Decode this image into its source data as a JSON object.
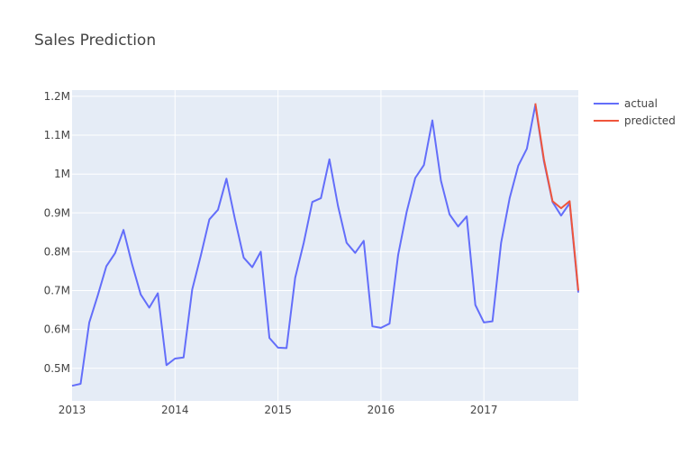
{
  "chart_data": {
    "type": "line",
    "title": "Sales Prediction",
    "xlabel": "",
    "ylabel": "",
    "xlim": [
      2013.0,
      2017.917
    ],
    "ylim": [
      416000,
      1216000
    ],
    "grid": true,
    "legend_position": "top-right",
    "x_ticks": [
      {
        "value": 2013,
        "label": "2013"
      },
      {
        "value": 2014,
        "label": "2014"
      },
      {
        "value": 2015,
        "label": "2015"
      },
      {
        "value": 2016,
        "label": "2016"
      },
      {
        "value": 2017,
        "label": "2017"
      }
    ],
    "y_ticks": [
      {
        "value": 500000,
        "label": "0.5M"
      },
      {
        "value": 600000,
        "label": "0.6M"
      },
      {
        "value": 700000,
        "label": "0.7M"
      },
      {
        "value": 800000,
        "label": "0.8M"
      },
      {
        "value": 900000,
        "label": "0.9M"
      },
      {
        "value": 1000000,
        "label": "1M"
      },
      {
        "value": 1100000,
        "label": "1.1M"
      },
      {
        "value": 1200000,
        "label": "1.2M"
      }
    ],
    "series": [
      {
        "name": "actual",
        "color": "#636efa",
        "x": [
          2013.0,
          2013.083,
          2013.167,
          2013.25,
          2013.333,
          2013.417,
          2013.5,
          2013.583,
          2013.667,
          2013.75,
          2013.833,
          2013.917,
          2014.0,
          2014.083,
          2014.167,
          2014.25,
          2014.333,
          2014.417,
          2014.5,
          2014.583,
          2014.667,
          2014.75,
          2014.833,
          2014.917,
          2015.0,
          2015.083,
          2015.167,
          2015.25,
          2015.333,
          2015.417,
          2015.5,
          2015.583,
          2015.667,
          2015.75,
          2015.833,
          2015.917,
          2016.0,
          2016.083,
          2016.167,
          2016.25,
          2016.333,
          2016.417,
          2016.5,
          2016.583,
          2016.667,
          2016.75,
          2016.833,
          2016.917,
          2017.0,
          2017.083,
          2017.167,
          2017.25,
          2017.333,
          2017.417,
          2017.5,
          2017.583,
          2017.667,
          2017.75,
          2017.833,
          2017.917
        ],
        "values": [
          455000,
          460000,
          618000,
          688000,
          763000,
          796000,
          856000,
          768000,
          690000,
          656000,
          693000,
          508000,
          525000,
          528000,
          703000,
          790000,
          883000,
          908000,
          988000,
          883000,
          785000,
          760000,
          800000,
          578000,
          553000,
          552000,
          733000,
          823000,
          928000,
          938000,
          1038000,
          918000,
          823000,
          797000,
          828000,
          608000,
          604000,
          615000,
          792000,
          903000,
          990000,
          1023000,
          1138000,
          983000,
          896000,
          865000,
          891000,
          663000,
          618000,
          621000,
          823000,
          938000,
          1021000,
          1065000,
          1178000,
          1033000,
          928000,
          893000,
          925000,
          695000
        ]
      },
      {
        "name": "predicted",
        "color": "#ef553b",
        "x": [
          2017.5,
          2017.583,
          2017.667,
          2017.75,
          2017.833,
          2017.917
        ],
        "values": [
          1182000,
          1038000,
          930000,
          912000,
          930000,
          700000
        ]
      }
    ]
  }
}
